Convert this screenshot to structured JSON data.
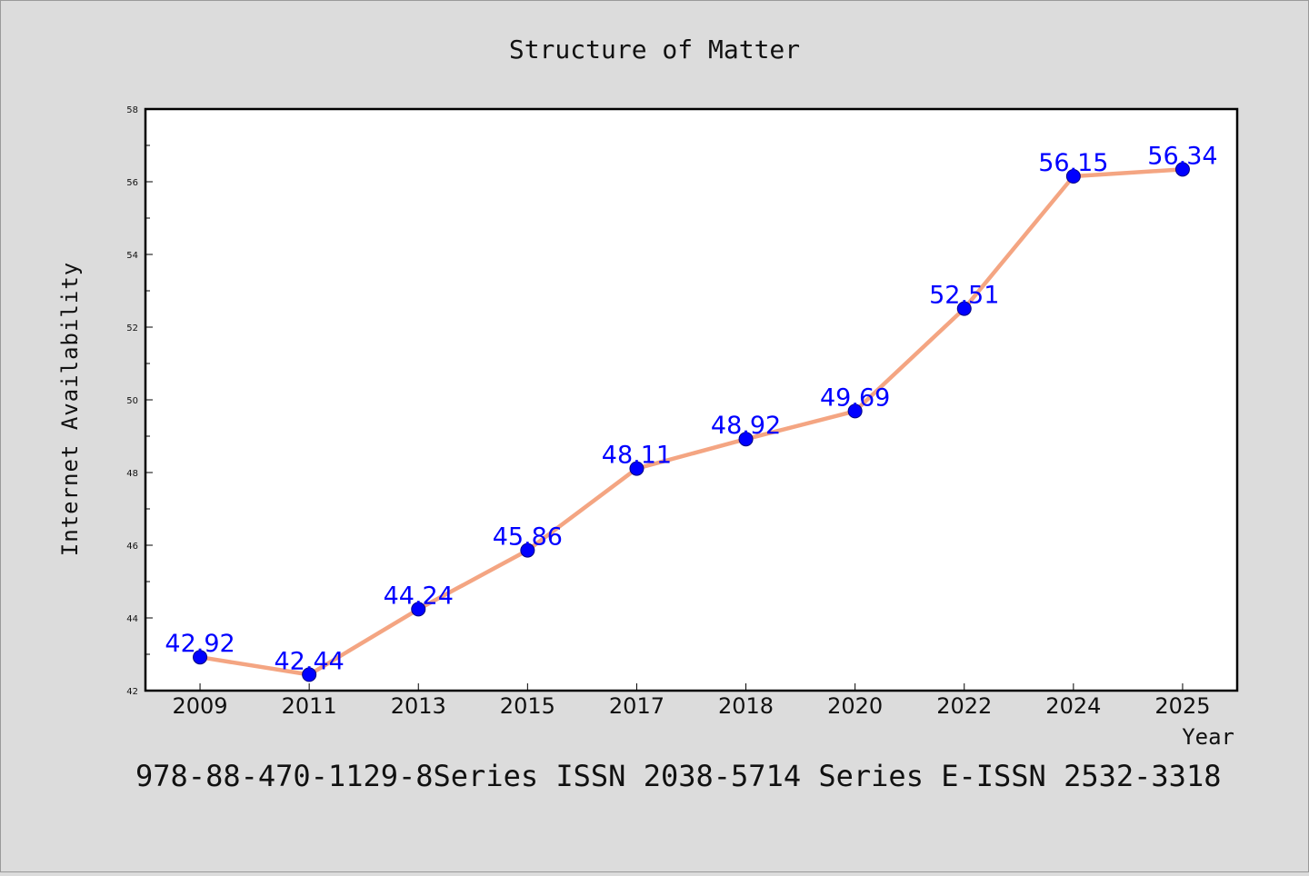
{
  "chart_data": {
    "type": "line",
    "title": "Structure of Matter",
    "xlabel": "Year",
    "ylabel": "Internet Availability",
    "categories": [
      "2009",
      "2011",
      "2013",
      "2015",
      "2017",
      "2018",
      "2020",
      "2022",
      "2024",
      "2025"
    ],
    "series": [
      {
        "values": [
          42.92,
          42.44,
          44.24,
          45.86,
          48.11,
          48.92,
          49.69,
          52.51,
          56.15,
          56.34
        ]
      }
    ],
    "data_labels": [
      "42.92",
      "42.44",
      "44.24",
      "45.86",
      "48.11",
      "48.92",
      "49.69",
      "52.51",
      "56.15",
      "56.34"
    ],
    "ylim": [
      42,
      58
    ],
    "yticks": [
      42,
      44,
      46,
      48,
      50,
      52,
      54,
      56,
      58
    ],
    "ytick_labels": [
      "42",
      "44",
      "46",
      "48",
      "50",
      "52",
      "54",
      "56",
      "58"
    ],
    "grid": false,
    "line_color": "#f4a582",
    "marker_color": "#0000ff",
    "label_color": "#0000ff"
  },
  "footer": {
    "text": "978-88-470-1129-8Series ISSN 2038-5714 Series E-ISSN 2532-3318"
  }
}
